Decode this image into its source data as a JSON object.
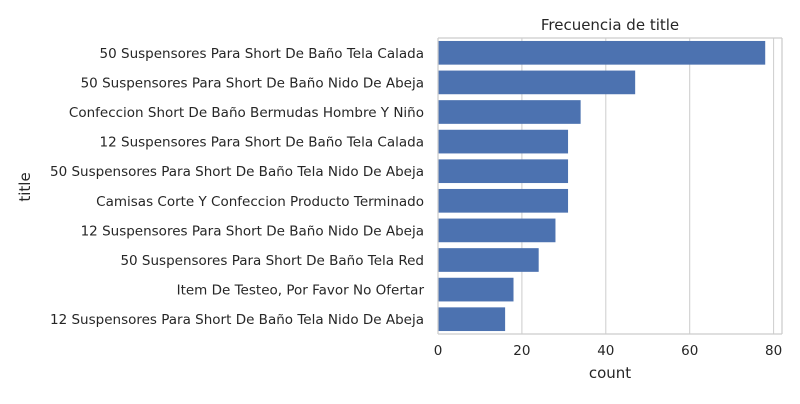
{
  "chart_data": {
    "type": "bar",
    "orientation": "horizontal",
    "title": "Frecuencia de title",
    "xlabel": "count",
    "ylabel": "title",
    "categories": [
      "50 Suspensores Para Short De Baño Tela Calada",
      "50 Suspensores Para Short De Baño Nido De Abeja",
      "Confeccion Short De Baño Bermudas Hombre Y Niño",
      "12 Suspensores Para Short De Baño Tela Calada",
      "50 Suspensores Para Short De Baño Tela Nido De Abeja",
      "Camisas Corte Y Confeccion Producto Terminado",
      "12 Suspensores Para Short De Baño Nido De Abeja",
      "50 Suspensores Para Short De Baño Tela Red",
      "Item De Testeo, Por Favor No Ofertar",
      "12 Suspensores Para Short De Baño Tela Nido De Abeja"
    ],
    "values": [
      78,
      47,
      34,
      31,
      31,
      31,
      28,
      24,
      18,
      16
    ],
    "xlim": [
      0,
      82
    ],
    "xticks": [
      0,
      20,
      40,
      60,
      80
    ],
    "grid": true,
    "bar_color": "#4c72b0"
  }
}
